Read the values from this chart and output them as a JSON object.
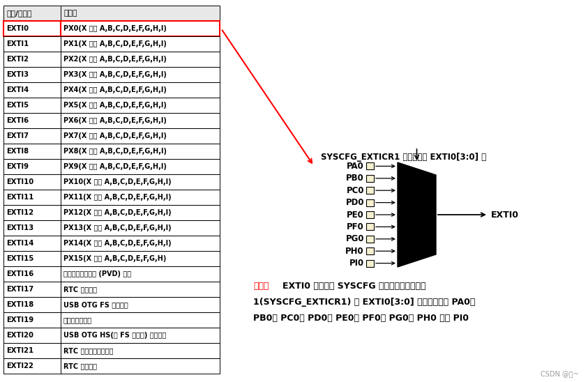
{
  "table_headers": [
    "中断/事件线",
    "输入源"
  ],
  "table_rows": [
    [
      "EXTI0",
      "PX0(X 可为 A,B,C,D,E,F,G,H,I)"
    ],
    [
      "EXTI1",
      "PX1(X 可为 A,B,C,D,E,F,G,H,I)"
    ],
    [
      "EXTI2",
      "PX2(X 可为 A,B,C,D,E,F,G,H,I)"
    ],
    [
      "EXTI3",
      "PX3(X 可为 A,B,C,D,E,F,G,H,I)"
    ],
    [
      "EXTI4",
      "PX4(X 可为 A,B,C,D,E,F,G,H,I)"
    ],
    [
      "EXTI5",
      "PX5(X 可为 A,B,C,D,E,F,G,H,I)"
    ],
    [
      "EXTI6",
      "PX6(X 可为 A,B,C,D,E,F,G,H,I)"
    ],
    [
      "EXTI7",
      "PX7(X 可为 A,B,C,D,E,F,G,H,I)"
    ],
    [
      "EXTI8",
      "PX8(X 可为 A,B,C,D,E,F,G,H,I)"
    ],
    [
      "EXTI9",
      "PX9(X 可为 A,B,C,D,E,F,G,H,I)"
    ],
    [
      "EXTI10",
      "PX10(X 可为 A,B,C,D,E,F,G,H,I)"
    ],
    [
      "EXTI11",
      "PX11(X 可为 A,B,C,D,E,F,G,H,I)"
    ],
    [
      "EXTI12",
      "PX12(X 可为 A,B,C,D,E,F,G,H,I)"
    ],
    [
      "EXTI13",
      "PX13(X 可为 A,B,C,D,E,F,G,H,I)"
    ],
    [
      "EXTI14",
      "PX14(X 可为 A,B,C,D,E,F,G,H,I)"
    ],
    [
      "EXTI15",
      "PX15(X 可为 A,B,C,D,E,F,G,H)"
    ],
    [
      "EXTI16",
      "可编程电压检测器 (PVD) 输出"
    ],
    [
      "EXTI17",
      "RTC 闹钟事件"
    ],
    [
      "EXTI18",
      "USB OTG FS 唤醒事件"
    ],
    [
      "EXTI19",
      "以太网唤醒事件"
    ],
    [
      "EXTI20",
      "USB OTG HS(在 FS 中配置) 唤醒事件"
    ],
    [
      "EXTI21",
      "RTC 入侵和时间截事件"
    ],
    [
      "EXTI22",
      "RTC 唤醒事件"
    ]
  ],
  "highlight_row": 0,
  "highlight_color": "#ff0000",
  "mux_inputs": [
    "PA0",
    "PB0",
    "PC0",
    "PD0",
    "PE0",
    "PF0",
    "PG0",
    "PH0",
    "PI0"
  ],
  "mux_output": "EXTI0",
  "mux_title": "SYSCFG_EXTICR1 寄存器中的 EXTI0[3:0] 位",
  "example_prefix": "示例：",
  "example_line1": "EXTI0 可以通过 SYSCFG 外部中断配置寄存器",
  "example_line2": "1(SYSCFG_EXTICR1) 的 EXTI0[3:0] 位选择配置为 PA0、",
  "example_line3": "PB0、 PC0、 PD0、 PE0、 PF0、 PG0、 PH0 或者 PI0",
  "bg_color": "#ffffff",
  "csdn_text": "CSDN @泡~"
}
